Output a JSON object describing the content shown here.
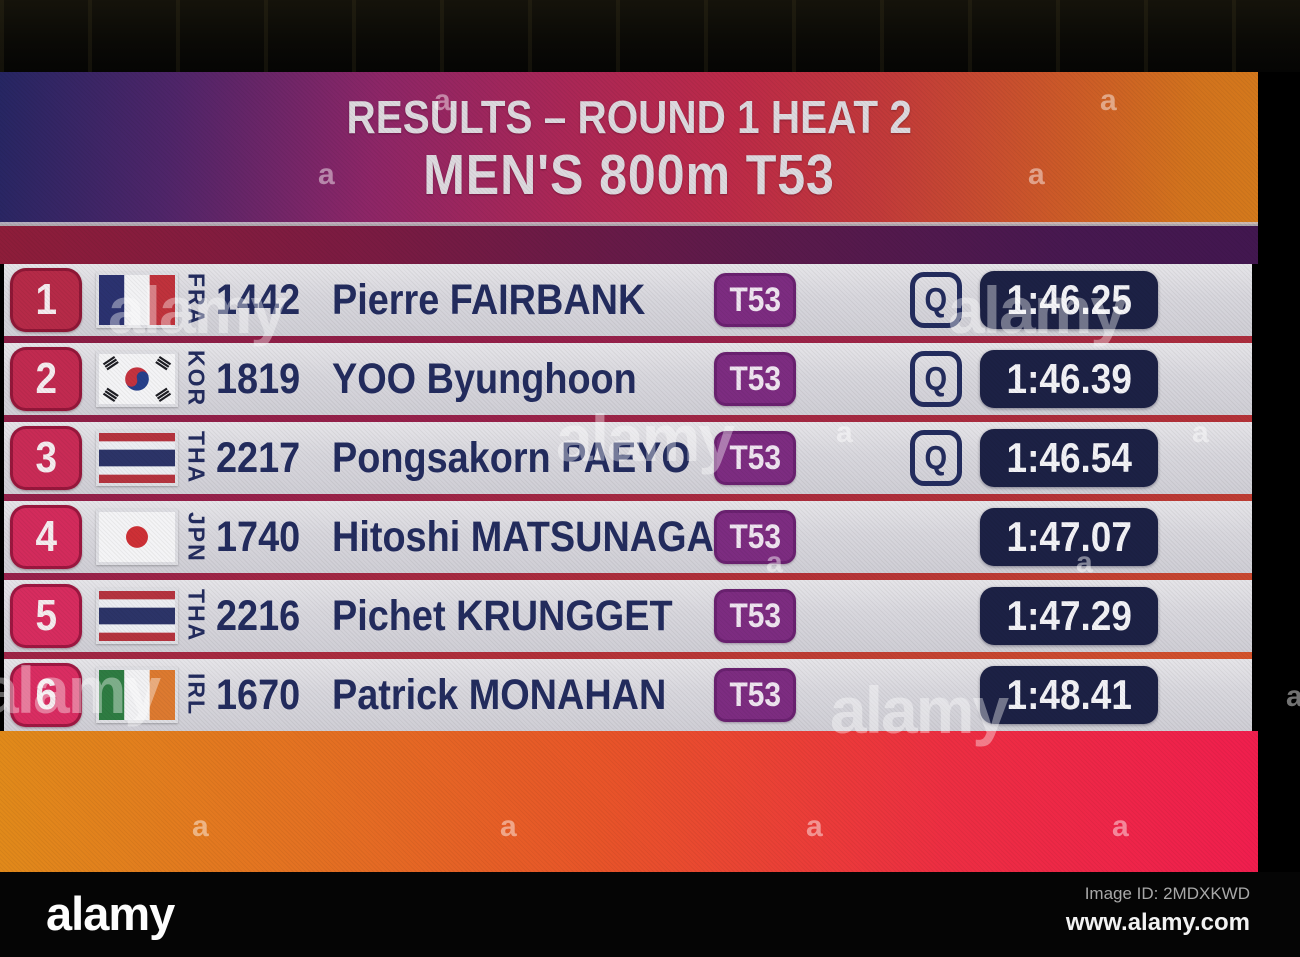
{
  "header": {
    "line1": "RESULTS – ROUND 1 HEAT 2",
    "line2": "MEN'S 800m T53"
  },
  "results": [
    {
      "rank": "1",
      "country": "FRA",
      "flag": "fra-flag",
      "bib": "1442",
      "name": "Pierre FAIRBANK",
      "class": "T53",
      "q": "Q",
      "time": "1:46.25",
      "rank_color": "#b62a48"
    },
    {
      "rank": "2",
      "country": "KOR",
      "flag": "kor-flag",
      "bib": "1819",
      "name": "YOO Byunghoon",
      "class": "T53",
      "q": "Q",
      "time": "1:46.39",
      "rank_color": "#c12a50"
    },
    {
      "rank": "3",
      "country": "THA",
      "flag": "tha-flag",
      "bib": "2217",
      "name": "Pongsakorn PAEYO",
      "class": "T53",
      "q": "Q",
      "time": "1:46.54",
      "rank_color": "#c92b56"
    },
    {
      "rank": "4",
      "country": "JPN",
      "flag": "jpn-flag",
      "bib": "1740",
      "name": "Hitoshi MATSUNAGA",
      "class": "T53",
      "q": "",
      "time": "1:47.07",
      "rank_color": "#d32b5c"
    },
    {
      "rank": "5",
      "country": "THA",
      "flag": "tha-flag",
      "bib": "2216",
      "name": "Pichet KRUNGGET",
      "class": "T53",
      "q": "",
      "time": "1:47.29",
      "rank_color": "#d72c5f"
    },
    {
      "rank": "6",
      "country": "IRL",
      "flag": "irl-flag",
      "bib": "1670",
      "name": "Patrick MONAHAN",
      "class": "T53",
      "q": "",
      "time": "1:48.41",
      "rank_color": "#da2d62"
    }
  ],
  "watermark": {
    "brand": "alamy",
    "tile": "a"
  },
  "footer": {
    "logo": "alamy",
    "image_id": "Image ID: 2MDXKWD",
    "site": "www.alamy.com"
  },
  "colors": {
    "screen_left_navy": "#262663",
    "screen_right_orange": "#d57a1c",
    "row_background": "#d8d7dd",
    "rank_badge_red": "#c9284f",
    "class_badge_purple": "#7d2c81",
    "time_box_navy": "#1c2145",
    "row_text_navy": "#232c5e",
    "bottom_band_red": "#f01e4e"
  }
}
